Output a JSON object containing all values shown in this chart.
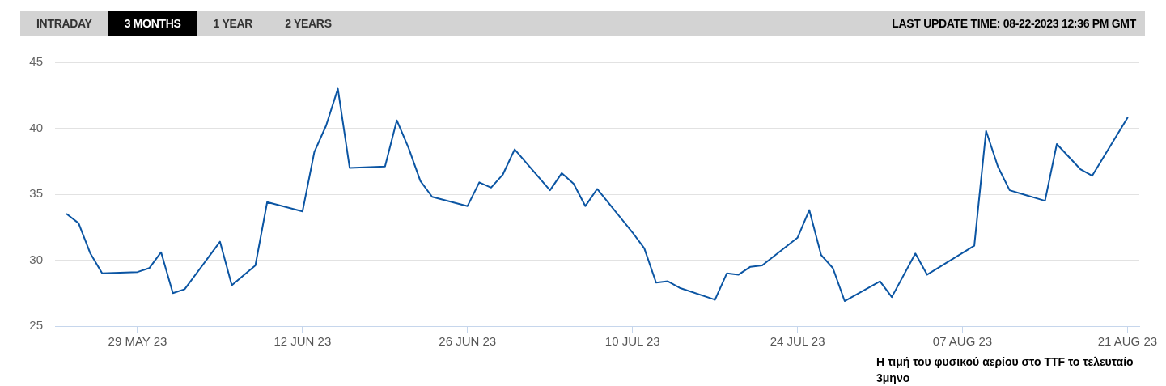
{
  "chart_data": {
    "type": "line",
    "x": [
      "2023-05-23",
      "2023-05-24",
      "2023-05-25",
      "2023-05-26",
      "2023-05-29",
      "2023-05-30",
      "2023-05-31",
      "2023-06-01",
      "2023-06-02",
      "2023-06-05",
      "2023-06-06",
      "2023-06-08",
      "2023-06-09",
      "2023-06-12",
      "2023-06-13",
      "2023-06-14",
      "2023-06-15",
      "2023-06-16",
      "2023-06-19",
      "2023-06-20",
      "2023-06-21",
      "2023-06-22",
      "2023-06-23",
      "2023-06-26",
      "2023-06-27",
      "2023-06-28",
      "2023-06-29",
      "2023-06-30",
      "2023-07-03",
      "2023-07-04",
      "2023-07-05",
      "2023-07-06",
      "2023-07-07",
      "2023-07-10",
      "2023-07-11",
      "2023-07-12",
      "2023-07-13",
      "2023-07-14",
      "2023-07-17",
      "2023-07-18",
      "2023-07-19",
      "2023-07-20",
      "2023-07-21",
      "2023-07-24",
      "2023-07-25",
      "2023-07-26",
      "2023-07-27",
      "2023-07-28",
      "2023-07-31",
      "2023-08-01",
      "2023-08-03",
      "2023-08-04",
      "2023-08-08",
      "2023-08-09",
      "2023-08-10",
      "2023-08-11",
      "2023-08-14",
      "2023-08-15",
      "2023-08-17",
      "2023-08-18",
      "2023-08-21"
    ],
    "series": [
      {
        "color": "#0b55a3",
        "values": [
          33.5,
          32.8,
          30.5,
          29.0,
          29.1,
          29.4,
          30.6,
          27.5,
          27.8,
          31.4,
          28.1,
          29.6,
          34.4,
          33.7,
          38.2,
          40.2,
          43.0,
          37.0,
          37.1,
          40.6,
          38.5,
          36.0,
          34.8,
          34.1,
          35.9,
          35.5,
          36.5,
          38.4,
          35.3,
          36.6,
          35.8,
          34.1,
          35.4,
          32.1,
          30.9,
          28.3,
          28.4,
          27.9,
          27.0,
          29.0,
          28.9,
          29.5,
          29.6,
          31.7,
          33.8,
          30.4,
          29.4,
          26.9,
          28.4,
          27.2,
          30.5,
          28.9,
          31.1,
          39.8,
          37.1,
          35.3,
          34.5,
          38.8,
          36.9,
          36.4,
          40.8
        ]
      }
    ],
    "xlim": [
      "2023-05-22",
      "2023-08-22"
    ],
    "xticks": [
      {
        "value": "2023-05-29",
        "label": "29 MAY 23"
      },
      {
        "value": "2023-06-12",
        "label": "12 JUN 23"
      },
      {
        "value": "2023-06-26",
        "label": "26 JUN 23"
      },
      {
        "value": "2023-07-10",
        "label": "10 JUL 23"
      },
      {
        "value": "2023-07-24",
        "label": "24 JUL 23"
      },
      {
        "value": "2023-08-07",
        "label": "07 AUG 23"
      },
      {
        "value": "2023-08-21",
        "label": "21 AUG 23"
      }
    ],
    "ylim": [
      25,
      45
    ],
    "yticks": [
      25,
      30,
      35,
      40,
      45
    ],
    "grid": "y",
    "marker": "none",
    "line_style": "solid",
    "annotations": [
      "INTRADAY",
      "3 MONTHS",
      "1 YEAR",
      "2 YEARS",
      "LAST UPDATE TIME: 08-22-2023 12:36 PM GMT",
      "Η τιμή του φυσικού αερίου στο TTF το τελευταίο 3μηνο"
    ]
  }
}
